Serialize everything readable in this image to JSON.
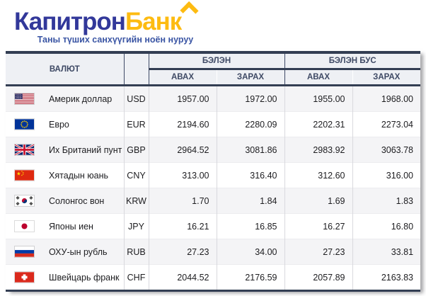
{
  "brand": {
    "logo_part1": "Капитрон",
    "logo_part2": "Банк",
    "tagline": "Таны түших санхүүгийн ноён нуруу",
    "color_blue": "#32389a",
    "color_yellow": "#fdbb11"
  },
  "table": {
    "col_currency": "ВАЛЮТ",
    "group_cash": "БЭЛЭН",
    "group_noncash": "БЭЛЭН БУС",
    "col_buy": "АВАХ",
    "col_sell": "ЗАРАХ",
    "rows": [
      {
        "flag": "us",
        "name": "Америк доллар",
        "code": "USD",
        "cash_buy": "1957.00",
        "cash_sell": "1972.00",
        "noncash_buy": "1955.00",
        "noncash_sell": "1968.00"
      },
      {
        "flag": "eu",
        "name": "Евро",
        "code": "EUR",
        "cash_buy": "2194.60",
        "cash_sell": "2280.09",
        "noncash_buy": "2202.31",
        "noncash_sell": "2273.04"
      },
      {
        "flag": "gb",
        "name": "Их Британий пунт",
        "code": "GBP",
        "cash_buy": "2964.52",
        "cash_sell": "3081.86",
        "noncash_buy": "2983.92",
        "noncash_sell": "3063.78"
      },
      {
        "flag": "cn",
        "name": "Хятадын юань",
        "code": "CNY",
        "cash_buy": "313.00",
        "cash_sell": "316.40",
        "noncash_buy": "312.60",
        "noncash_sell": "316.00"
      },
      {
        "flag": "kr",
        "name": "Солонгос вон",
        "code": "KRW",
        "cash_buy": "1.70",
        "cash_sell": "1.84",
        "noncash_buy": "1.69",
        "noncash_sell": "1.83"
      },
      {
        "flag": "jp",
        "name": "Японы иен",
        "code": "JPY",
        "cash_buy": "16.21",
        "cash_sell": "16.85",
        "noncash_buy": "16.27",
        "noncash_sell": "16.80"
      },
      {
        "flag": "ru",
        "name": "ОХУ-ын рубль",
        "code": "RUB",
        "cash_buy": "27.23",
        "cash_sell": "34.00",
        "noncash_buy": "27.23",
        "noncash_sell": "33.81"
      },
      {
        "flag": "ch",
        "name": "Швейцарь франк",
        "code": "CHF",
        "cash_buy": "2044.52",
        "cash_sell": "2176.59",
        "noncash_buy": "2057.89",
        "noncash_sell": "2163.83"
      }
    ]
  }
}
